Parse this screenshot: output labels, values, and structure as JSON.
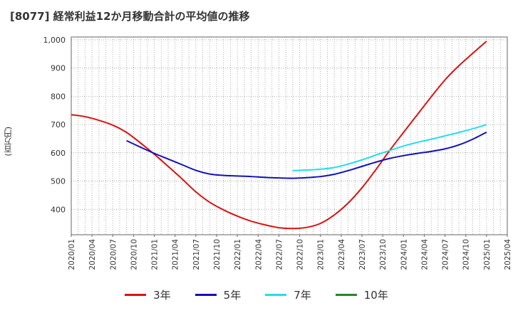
{
  "chart_data": {
    "type": "line",
    "title": "[8077]  経常利益12か月移動合計の平均値の推移",
    "ylabel": "(百万円)",
    "xlabel": "",
    "ylim": [
      310,
      1010
    ],
    "yticks": [
      400,
      500,
      600,
      700,
      800,
      900,
      1000
    ],
    "ytick_labels": [
      "400",
      "500",
      "600",
      "700",
      "800",
      "900",
      "1,000"
    ],
    "x_ticks": [
      "2020/01",
      "2020/04",
      "2020/07",
      "2020/10",
      "2021/01",
      "2021/04",
      "2021/07",
      "2021/10",
      "2022/01",
      "2022/04",
      "2022/07",
      "2022/10",
      "2023/01",
      "2023/04",
      "2023/07",
      "2023/10",
      "2024/01",
      "2024/04",
      "2024/07",
      "2024/10",
      "2025/01",
      "2025/04"
    ],
    "grid": true,
    "legend_position": "bottom",
    "series": [
      {
        "name": "3年",
        "color": "#dd1111",
        "points": [
          [
            "2020/01",
            735
          ],
          [
            "2020/03",
            728
          ],
          [
            "2020/05",
            715
          ],
          [
            "2020/07",
            698
          ],
          [
            "2020/09",
            672
          ],
          [
            "2020/11",
            635
          ],
          [
            "2021/01",
            595
          ],
          [
            "2021/03",
            552
          ],
          [
            "2021/05",
            508
          ],
          [
            "2021/07",
            462
          ],
          [
            "2021/09",
            425
          ],
          [
            "2021/11",
            398
          ],
          [
            "2022/01",
            376
          ],
          [
            "2022/03",
            358
          ],
          [
            "2022/05",
            345
          ],
          [
            "2022/07",
            335
          ],
          [
            "2022/09",
            332
          ],
          [
            "2022/11",
            336
          ],
          [
            "2023/01",
            350
          ],
          [
            "2023/03",
            380
          ],
          [
            "2023/05",
            422
          ],
          [
            "2023/07",
            476
          ],
          [
            "2023/09",
            540
          ],
          [
            "2023/11",
            608
          ],
          [
            "2024/01",
            672
          ],
          [
            "2024/03",
            735
          ],
          [
            "2024/05",
            798
          ],
          [
            "2024/07",
            858
          ],
          [
            "2024/09",
            908
          ],
          [
            "2024/11",
            952
          ],
          [
            "2025/01",
            995
          ]
        ]
      },
      {
        "name": "5年",
        "color": "#1111bb",
        "points": [
          [
            "2020/09",
            643
          ],
          [
            "2020/11",
            620
          ],
          [
            "2021/01",
            598
          ],
          [
            "2021/03",
            578
          ],
          [
            "2021/05",
            558
          ],
          [
            "2021/07",
            538
          ],
          [
            "2021/09",
            525
          ],
          [
            "2021/11",
            520
          ],
          [
            "2022/01",
            518
          ],
          [
            "2022/03",
            516
          ],
          [
            "2022/05",
            513
          ],
          [
            "2022/07",
            511
          ],
          [
            "2022/09",
            510
          ],
          [
            "2022/11",
            512
          ],
          [
            "2023/01",
            516
          ],
          [
            "2023/03",
            524
          ],
          [
            "2023/05",
            537
          ],
          [
            "2023/07",
            552
          ],
          [
            "2023/09",
            567
          ],
          [
            "2023/11",
            580
          ],
          [
            "2024/01",
            590
          ],
          [
            "2024/03",
            598
          ],
          [
            "2024/05",
            605
          ],
          [
            "2024/07",
            614
          ],
          [
            "2024/09",
            628
          ],
          [
            "2024/11",
            648
          ],
          [
            "2025/01",
            673
          ]
        ]
      },
      {
        "name": "7年",
        "color": "#22ddee",
        "points": [
          [
            "2022/09",
            537
          ],
          [
            "2022/11",
            539
          ],
          [
            "2023/01",
            542
          ],
          [
            "2023/03",
            548
          ],
          [
            "2023/05",
            560
          ],
          [
            "2023/07",
            575
          ],
          [
            "2023/09",
            592
          ],
          [
            "2023/11",
            608
          ],
          [
            "2024/01",
            624
          ],
          [
            "2024/03",
            637
          ],
          [
            "2024/05",
            648
          ],
          [
            "2024/07",
            660
          ],
          [
            "2024/09",
            672
          ],
          [
            "2024/11",
            685
          ],
          [
            "2025/01",
            700
          ]
        ]
      },
      {
        "name": "10年",
        "color": "#228822",
        "points": []
      }
    ]
  }
}
